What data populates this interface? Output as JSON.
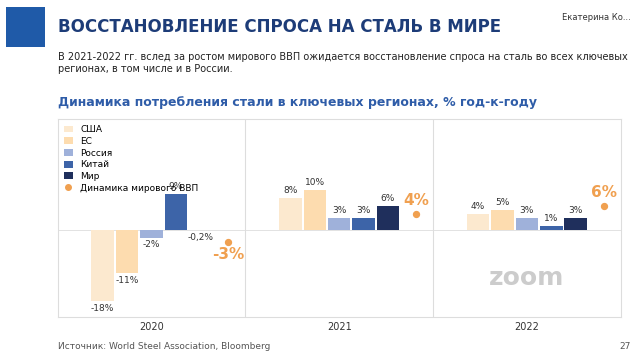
{
  "header": {
    "title": "ВОССТАНОВЛЕНИЕ СПРОСА НА СТАЛЬ В МИРЕ",
    "subtitle": "В 2021-2022 гг. вслед за ростом мирового ВВП ожидается восстановление спроса на сталь во всех ключевых регионах, в том числе и в России.",
    "presenter": "Екатерина Ко...",
    "page": "27",
    "watermark": "zoom"
  },
  "chart_data": {
    "type": "bar",
    "title": "Динамика потребления стали в ключевых регионах, % год-к-году",
    "source": "Источник: World Steel Association, Bloomberg",
    "categories": [
      "2020",
      "2021",
      "2022"
    ],
    "ylim": [
      -22,
      28
    ],
    "tick_labels": "x",
    "data_labels": true,
    "legend": "upper left",
    "series": [
      {
        "name": "США",
        "type": "bar",
        "color": "#fce9cf",
        "values": [
          -18,
          8,
          4
        ],
        "value_labels": [
          "-18%",
          "8%",
          "4%"
        ]
      },
      {
        "name": "ЕС",
        "type": "bar",
        "color": "#fddcaf",
        "values": [
          -11,
          10,
          5
        ],
        "value_labels": [
          "-11%",
          "10%",
          "5%"
        ]
      },
      {
        "name": "Россия",
        "type": "bar",
        "color": "#9fb1da",
        "values": [
          -2,
          3,
          3
        ],
        "value_labels": [
          "-2%",
          "3%",
          "3%"
        ]
      },
      {
        "name": "Китай",
        "type": "bar",
        "color": "#3d64a8",
        "values": [
          9,
          3,
          1
        ],
        "value_labels": [
          "9%",
          "3%",
          "1%"
        ]
      },
      {
        "name": "Мир",
        "type": "bar",
        "color": "#1f2f5c",
        "values": [
          -0.2,
          6,
          3
        ],
        "value_labels": [
          "-0,2%",
          "6%",
          "3%"
        ]
      },
      {
        "name": "Динамика мирового ВВП",
        "type": "scatter",
        "marker": "o",
        "color": "#f0a050",
        "values": [
          -3,
          4,
          6
        ],
        "value_labels": [
          "-3%",
          "4%",
          "6%"
        ]
      }
    ]
  }
}
